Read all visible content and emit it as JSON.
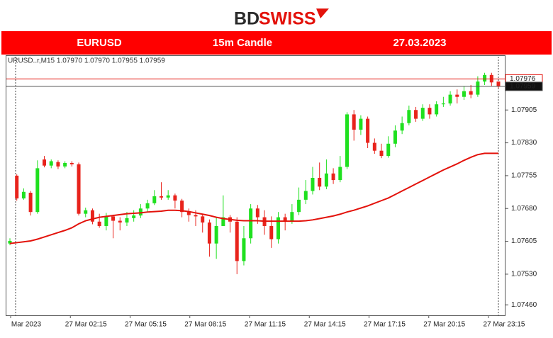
{
  "header": {
    "logo_left": "BD",
    "logo_right": "SWISS"
  },
  "banner": {
    "symbol": "EURUSD",
    "timeframe": "15m Candle",
    "date": "27.03.2023"
  },
  "chart_data": {
    "type": "candlestick",
    "info": "URUSD..r,M15  1.07970 1.07970 1.07955 1.07959",
    "up_color": "#1fe01f",
    "down_color": "#e8231c",
    "ma_color": "#e3120b",
    "open": [
      1.076,
      1.07755,
      1.07703,
      1.07716,
      1.07672,
      1.07792,
      1.07778,
      1.07786,
      1.07776,
      1.07784,
      1.07781,
      1.07668,
      1.07676,
      1.0765,
      1.0764,
      1.07662,
      1.07652,
      1.07648,
      1.07658,
      1.07664,
      1.0768,
      1.07692,
      1.07708,
      1.07705,
      1.0771,
      1.07698,
      1.07672,
      1.07665,
      1.07662,
      1.07648,
      1.076,
      1.0764,
      1.0766,
      1.0765,
      1.0756,
      1.07612,
      1.0768,
      1.0766,
      1.0764,
      1.0761,
      1.0766,
      1.0765,
      1.07672,
      1.077,
      1.0772,
      1.0775,
      1.0773,
      1.0776,
      1.07745,
      1.07775,
      1.07895,
      1.0786,
      1.07885,
      1.0783,
      1.07812,
      1.078,
      1.07828,
      1.07858,
      1.07875,
      1.07905,
      1.07885,
      1.0791,
      1.07895,
      1.07918,
      1.0792,
      1.0794,
      1.07935,
      1.07948,
      1.0794,
      1.0797,
      1.07985,
      1.0797
    ],
    "high": [
      1.07612,
      1.07758,
      1.07726,
      1.0772,
      1.0779,
      1.078,
      1.07792,
      1.0779,
      1.07788,
      1.07788,
      1.07785,
      1.07682,
      1.0768,
      1.07668,
      1.0767,
      1.07666,
      1.0766,
      1.07672,
      1.07676,
      1.0769,
      1.077,
      1.07722,
      1.0774,
      1.07722,
      1.07714,
      1.07702,
      1.0768,
      1.07676,
      1.07668,
      1.07655,
      1.0766,
      1.0771,
      1.07665,
      1.0766,
      1.0764,
      1.0769,
      1.07688,
      1.07676,
      1.07662,
      1.07672,
      1.07668,
      1.0769,
      1.07728,
      1.07745,
      1.07775,
      1.07785,
      1.07792,
      1.07772,
      1.078,
      1.079,
      1.07905,
      1.07893,
      1.0789,
      1.0784,
      1.07828,
      1.07845,
      1.0787,
      1.0789,
      1.07915,
      1.07912,
      1.07918,
      1.07918,
      1.07925,
      1.07935,
      1.07948,
      1.07952,
      1.0796,
      1.07962,
      1.07982,
      1.0799,
      1.0799,
      1.0797
    ],
    "low": [
      1.07596,
      1.07698,
      1.077,
      1.07664,
      1.07668,
      1.07774,
      1.07772,
      1.0777,
      1.07772,
      1.07776,
      1.07664,
      1.0766,
      1.07644,
      1.07636,
      1.0763,
      1.07612,
      1.0763,
      1.0764,
      1.0765,
      1.07658,
      1.07672,
      1.07688,
      1.077,
      1.077,
      1.0768,
      1.0766,
      1.0765,
      1.0764,
      1.07625,
      1.0757,
      1.07565,
      1.0764,
      1.07625,
      1.0753,
      1.0755,
      1.076,
      1.07645,
      1.0762,
      1.0759,
      1.076,
      1.0763,
      1.07645,
      1.07665,
      1.0769,
      1.07712,
      1.07722,
      1.07724,
      1.07736,
      1.0774,
      1.0777,
      1.07835,
      1.07848,
      1.07818,
      1.07805,
      1.07795,
      1.07796,
      1.0782,
      1.0785,
      1.0787,
      1.07878,
      1.0788,
      1.07885,
      1.0789,
      1.07912,
      1.07915,
      1.0792,
      1.07928,
      1.07932,
      1.07935,
      1.07962,
      1.0796,
      1.07955
    ],
    "close": [
      1.07606,
      1.07703,
      1.07718,
      1.07672,
      1.07772,
      1.07778,
      1.07788,
      1.07776,
      1.07784,
      1.07781,
      1.07668,
      1.07676,
      1.0765,
      1.0764,
      1.07662,
      1.07652,
      1.07648,
      1.07658,
      1.07664,
      1.0768,
      1.07692,
      1.07708,
      1.07705,
      1.0771,
      1.07698,
      1.07672,
      1.07665,
      1.07662,
      1.07648,
      1.076,
      1.0764,
      1.0766,
      1.0765,
      1.0756,
      1.07612,
      1.0768,
      1.0766,
      1.0764,
      1.0761,
      1.0766,
      1.0765,
      1.07672,
      1.077,
      1.0772,
      1.0775,
      1.0773,
      1.0776,
      1.07745,
      1.07775,
      1.07895,
      1.0786,
      1.07885,
      1.0783,
      1.07812,
      1.078,
      1.07828,
      1.07858,
      1.07875,
      1.07905,
      1.07885,
      1.0791,
      1.07895,
      1.07918,
      1.0792,
      1.0794,
      1.07935,
      1.07948,
      1.0794,
      1.0797,
      1.07985,
      1.07968,
      1.07959
    ],
    "ma": [
      1.076,
      1.07602,
      1.07604,
      1.07606,
      1.0761,
      1.07615,
      1.0762,
      1.07625,
      1.0763,
      1.07636,
      1.07645,
      1.07652,
      1.07656,
      1.0766,
      1.07662,
      1.07664,
      1.07666,
      1.07668,
      1.07669,
      1.0767,
      1.07672,
      1.07673,
      1.07674,
      1.07676,
      1.07676,
      1.07675,
      1.07673,
      1.0767,
      1.07667,
      1.07664,
      1.0766,
      1.07657,
      1.07655,
      1.07653,
      1.07652,
      1.07652,
      1.07652,
      1.07651,
      1.07651,
      1.07651,
      1.07651,
      1.07651,
      1.07651,
      1.07652,
      1.07654,
      1.07657,
      1.0766,
      1.07663,
      1.07667,
      1.07672,
      1.07676,
      1.07681,
      1.07686,
      1.07692,
      1.07698,
      1.07704,
      1.07712,
      1.0772,
      1.07728,
      1.07736,
      1.07744,
      1.07752,
      1.0776,
      1.07768,
      1.07775,
      1.07782,
      1.0779,
      1.07797,
      1.07803,
      1.07806,
      1.07806,
      1.07806
    ],
    "ylim": [
      1.07436,
      1.0803
    ],
    "yticks": [
      1.07905,
      {
        "value": 1.0783,
        "label": "1.07830"
      },
      1.07755,
      {
        "value": 1.0768,
        "label": "1.07680"
      },
      1.07605,
      {
        "value": 1.0753,
        "label": "1.07530"
      },
      {
        "value": 1.0746,
        "label": "1.07460"
      }
    ],
    "ask_line": 1.07976,
    "bid_line": 1.07959,
    "xtick_labels": [
      "Mar 2023",
      "27 Mar 02:15",
      "27 Mar 05:15",
      "27 Mar 08:15",
      "27 Mar 11:15",
      "27 Mar 14:15",
      "27 Mar 17:15",
      "27 Mar 20:15",
      "27 Mar 23:15"
    ]
  }
}
